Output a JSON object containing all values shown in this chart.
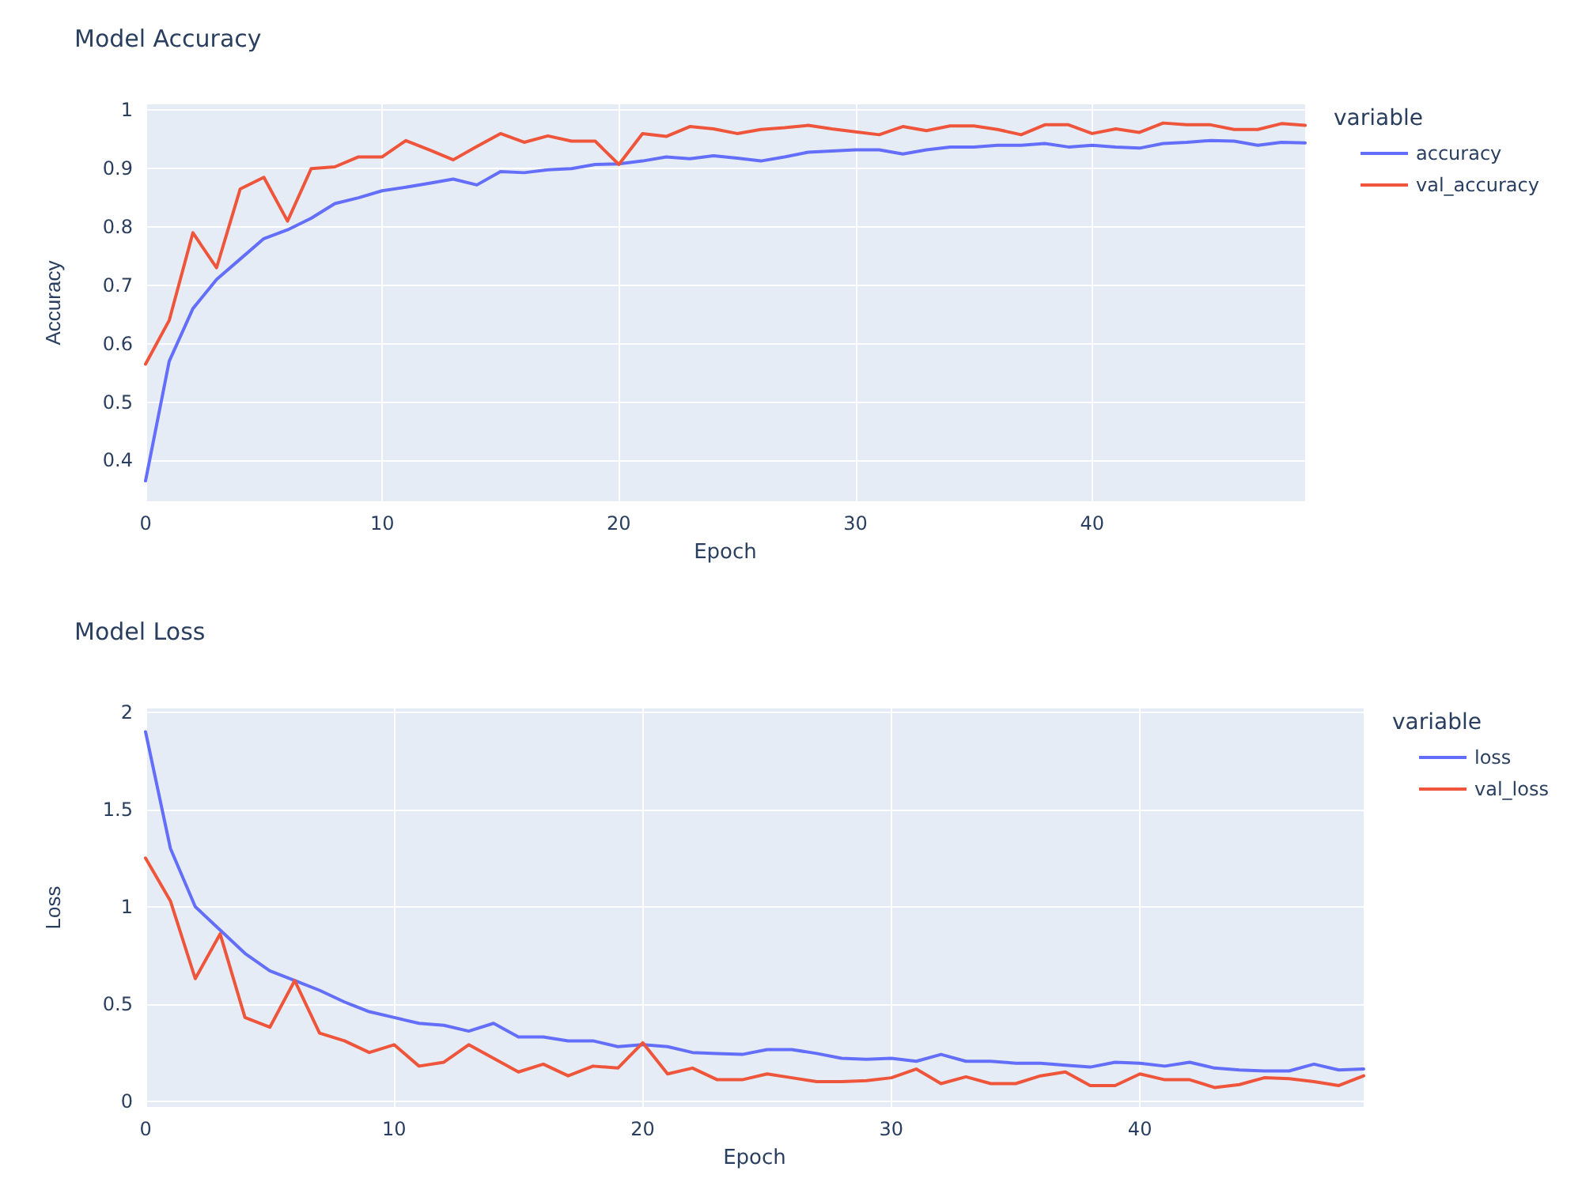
{
  "chart_data": [
    {
      "type": "line",
      "title": "Model Accuracy",
      "xlabel": "Epoch",
      "ylabel": "Accuracy",
      "legend_title": "variable",
      "x": [
        0,
        1,
        2,
        3,
        4,
        5,
        6,
        7,
        8,
        9,
        10,
        11,
        12,
        13,
        14,
        15,
        16,
        17,
        18,
        19,
        20,
        21,
        22,
        23,
        24,
        25,
        26,
        27,
        28,
        29,
        30,
        31,
        32,
        33,
        34,
        35,
        36,
        37,
        38,
        39,
        40,
        41,
        42,
        43,
        44,
        45,
        46,
        47,
        48,
        49
      ],
      "series": [
        {
          "name": "accuracy",
          "color": "#636efa",
          "values": [
            0.365,
            0.57,
            0.66,
            0.71,
            0.745,
            0.78,
            0.795,
            0.815,
            0.84,
            0.85,
            0.862,
            0.868,
            0.875,
            0.882,
            0.872,
            0.895,
            0.893,
            0.898,
            0.9,
            0.907,
            0.908,
            0.913,
            0.92,
            0.917,
            0.922,
            0.918,
            0.913,
            0.92,
            0.928,
            0.93,
            0.932,
            0.932,
            0.925,
            0.932,
            0.937,
            0.937,
            0.94,
            0.94,
            0.943,
            0.937,
            0.94,
            0.937,
            0.935,
            0.943,
            0.945,
            0.948,
            0.947,
            0.94,
            0.945,
            0.944
          ]
        },
        {
          "name": "val_accuracy",
          "color": "#ef553b",
          "values": [
            0.565,
            0.64,
            0.79,
            0.73,
            0.865,
            0.885,
            0.81,
            0.9,
            0.903,
            0.92,
            0.92,
            0.948,
            0.932,
            0.915,
            0.938,
            0.96,
            0.945,
            0.956,
            0.947,
            0.947,
            0.907,
            0.96,
            0.955,
            0.972,
            0.968,
            0.96,
            0.967,
            0.97,
            0.974,
            0.968,
            0.963,
            0.958,
            0.972,
            0.965,
            0.973,
            0.973,
            0.967,
            0.958,
            0.975,
            0.975,
            0.96,
            0.968,
            0.962,
            0.978,
            0.975,
            0.975,
            0.967,
            0.967,
            0.977,
            0.974
          ]
        }
      ],
      "xlim": [
        0,
        49
      ],
      "xticks": [
        0,
        10,
        20,
        30,
        40
      ],
      "ylim": [
        0.33,
        1.01
      ],
      "yticks": [
        0.4,
        0.5,
        0.6,
        0.7,
        0.8,
        0.9,
        1
      ],
      "grid": true,
      "legend": "top right",
      "marker": "none",
      "line_style": "solid"
    },
    {
      "type": "line",
      "title": "Model Loss",
      "xlabel": "Epoch",
      "ylabel": "Loss",
      "legend_title": "variable",
      "x": [
        0,
        1,
        2,
        3,
        4,
        5,
        6,
        7,
        8,
        9,
        10,
        11,
        12,
        13,
        14,
        15,
        16,
        17,
        18,
        19,
        20,
        21,
        22,
        23,
        24,
        25,
        26,
        27,
        28,
        29,
        30,
        31,
        32,
        33,
        34,
        35,
        36,
        37,
        38,
        39,
        40,
        41,
        42,
        43,
        44,
        45,
        46,
        47,
        48,
        49
      ],
      "series": [
        {
          "name": "loss",
          "color": "#636efa",
          "values": [
            1.9,
            1.3,
            1.0,
            0.88,
            0.76,
            0.67,
            0.62,
            0.57,
            0.51,
            0.46,
            0.43,
            0.4,
            0.39,
            0.36,
            0.4,
            0.33,
            0.33,
            0.31,
            0.31,
            0.28,
            0.29,
            0.28,
            0.25,
            0.245,
            0.24,
            0.265,
            0.265,
            0.245,
            0.22,
            0.215,
            0.22,
            0.205,
            0.24,
            0.205,
            0.205,
            0.195,
            0.195,
            0.185,
            0.175,
            0.2,
            0.195,
            0.18,
            0.2,
            0.17,
            0.16,
            0.155,
            0.155,
            0.19,
            0.16,
            0.165
          ]
        },
        {
          "name": "val_loss",
          "color": "#ef553b",
          "values": [
            1.25,
            1.03,
            0.63,
            0.86,
            0.43,
            0.38,
            0.62,
            0.35,
            0.31,
            0.25,
            0.29,
            0.18,
            0.2,
            0.29,
            0.22,
            0.15,
            0.19,
            0.13,
            0.18,
            0.17,
            0.3,
            0.14,
            0.17,
            0.11,
            0.11,
            0.14,
            0.12,
            0.1,
            0.1,
            0.105,
            0.12,
            0.165,
            0.09,
            0.125,
            0.09,
            0.09,
            0.13,
            0.15,
            0.08,
            0.08,
            0.14,
            0.11,
            0.11,
            0.07,
            0.085,
            0.12,
            0.115,
            0.1,
            0.08,
            0.13
          ]
        }
      ],
      "xlim": [
        0,
        49
      ],
      "xticks": [
        0,
        10,
        20,
        30,
        40
      ],
      "ylim": [
        -0.03,
        2.02
      ],
      "yticks": [
        0,
        0.5,
        1,
        1.5,
        2
      ],
      "grid": true,
      "legend": "top right",
      "marker": "none",
      "line_style": "solid"
    }
  ]
}
